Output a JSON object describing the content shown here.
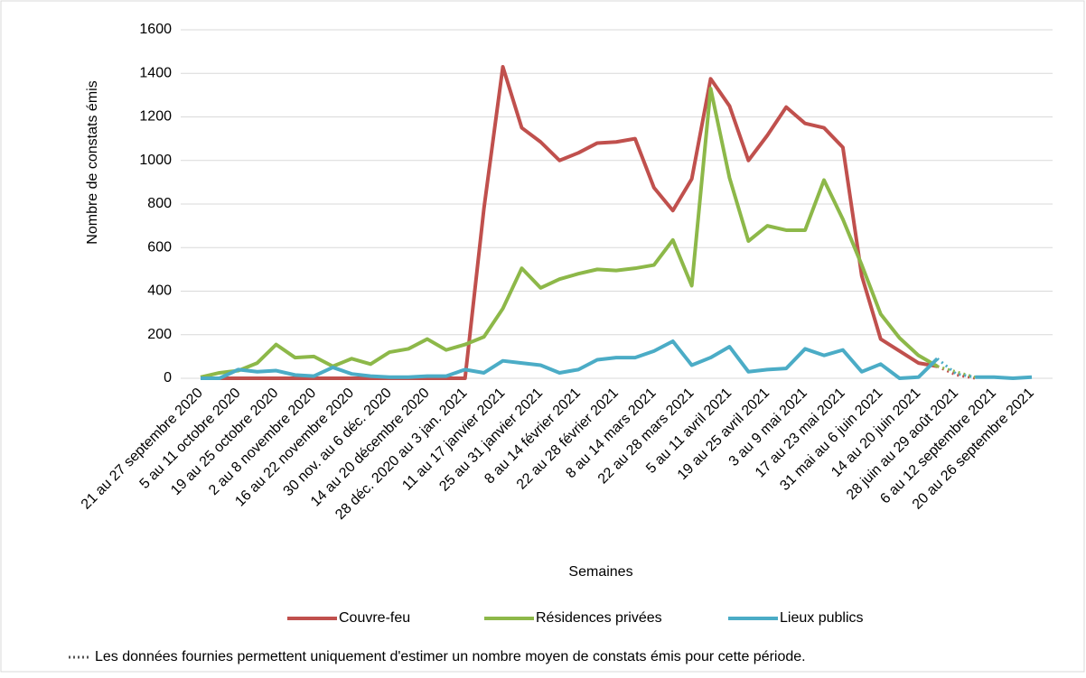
{
  "chart_data": {
    "type": "line",
    "y_label": "Nombre de constats émis",
    "x_label": "Semaines",
    "note": "Les données fournies permettent uniquement d'estimer un nombre moyen de constats émis pour cette période.",
    "categories": [
      "21 au 27 septembre 2020",
      null,
      "5 au 11 octobre 2020",
      null,
      "19 au 25 octobre 2020",
      null,
      "2 au 8 novembre 2020",
      null,
      "16 au 22 novembre 2020",
      null,
      "30 nov. au 6 déc. 2020",
      null,
      "14 au 20 décembre 2020",
      null,
      "28 déc. 2020 au 3 jan. 2021",
      null,
      "11 au 17 janvier 2021",
      null,
      "25 au 31 janvier 2021",
      null,
      "8 au 14 février 2021",
      null,
      "22 au 28 février 2021",
      null,
      "8 au 14 mars 2021",
      null,
      "22 au 28 mars 2021",
      null,
      "5 au 11 avril 2021",
      null,
      "19 au 25 avril 2021",
      null,
      "3 au 9 mai 2021",
      null,
      "17 au 23 mai 2021",
      null,
      "31 mai au 6 juin 2021",
      null,
      "14 au 20 juin 2021",
      null,
      "28 juin au 29 août 2021",
      null,
      "6 au 12 septembre 2021",
      null,
      "20 au 26 septembre 2021"
    ],
    "series": [
      {
        "name": "Couvre-feu",
        "color": "#c0504d",
        "values": [
          0,
          0,
          0,
          0,
          0,
          0,
          0,
          0,
          0,
          0,
          0,
          0,
          0,
          0,
          0,
          780,
          1430,
          1150,
          1085,
          1000,
          1035,
          1080,
          1085,
          1100,
          875,
          770,
          915,
          1375,
          1250,
          1000,
          1115,
          1245,
          1170,
          1150,
          1060,
          470,
          180,
          125,
          70,
          55,
          15,
          0,
          null,
          null,
          null
        ]
      },
      {
        "name": "Résidences privées",
        "color": "#8db849",
        "values": [
          5,
          25,
          35,
          70,
          155,
          95,
          100,
          55,
          90,
          65,
          120,
          135,
          180,
          130,
          155,
          190,
          320,
          505,
          415,
          455,
          480,
          500,
          495,
          505,
          520,
          635,
          425,
          1330,
          920,
          630,
          700,
          680,
          680,
          910,
          730,
          520,
          295,
          185,
          105,
          55,
          30,
          5,
          null,
          null,
          null
        ]
      },
      {
        "name": "Lieux publics",
        "color": "#4bacc6",
        "values": [
          0,
          0,
          40,
          30,
          35,
          15,
          10,
          50,
          20,
          10,
          5,
          5,
          10,
          10,
          40,
          25,
          80,
          70,
          60,
          25,
          40,
          85,
          95,
          95,
          125,
          170,
          60,
          95,
          145,
          30,
          40,
          45,
          135,
          105,
          130,
          30,
          65,
          0,
          5,
          90,
          20,
          5,
          5,
          0,
          5
        ]
      }
    ],
    "dotted_range": [
      39,
      41
    ],
    "ylim": [
      0,
      1600
    ],
    "yticks": [
      0,
      200,
      400,
      600,
      800,
      1000,
      1200,
      1400,
      1600
    ],
    "grid": true,
    "legend": "bottom"
  }
}
